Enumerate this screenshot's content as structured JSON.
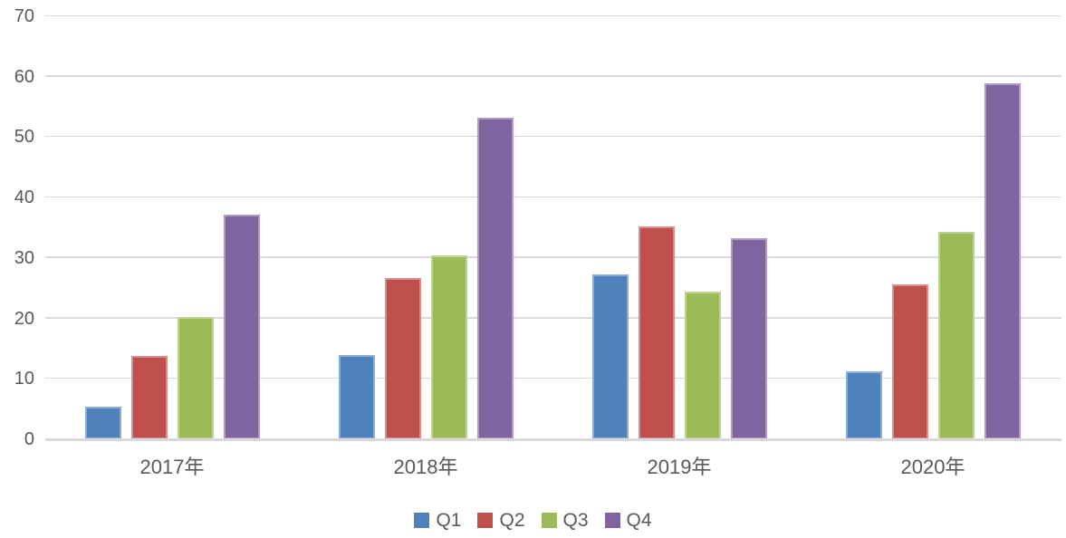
{
  "chart_data": {
    "type": "bar",
    "title": "",
    "xlabel": "",
    "ylabel": "",
    "categories": [
      "2017年",
      "2018年",
      "2019年",
      "2020年"
    ],
    "series": [
      {
        "name": "Q1",
        "color": "#4F81BD",
        "values": [
          5.4,
          14.0,
          27.3,
          11.2
        ]
      },
      {
        "name": "Q2",
        "color": "#C0504D",
        "values": [
          13.8,
          26.7,
          35.2,
          25.7
        ]
      },
      {
        "name": "Q3",
        "color": "#9BBB59",
        "values": [
          20.2,
          30.5,
          24.4,
          34.4
        ]
      },
      {
        "name": "Q4",
        "color": "#8064A2",
        "values": [
          37.2,
          53.2,
          33.3,
          58.9
        ]
      }
    ],
    "ylim": [
      0,
      70
    ],
    "yticks": [
      0,
      10,
      20,
      30,
      40,
      50,
      60,
      70
    ],
    "grid": true,
    "legend_position": "bottom",
    "colors": {
      "gridline": "#D9D9D9",
      "axis_line": "#D9D9D9",
      "tick_text": "#595959",
      "background": "#FFFFFF"
    }
  }
}
